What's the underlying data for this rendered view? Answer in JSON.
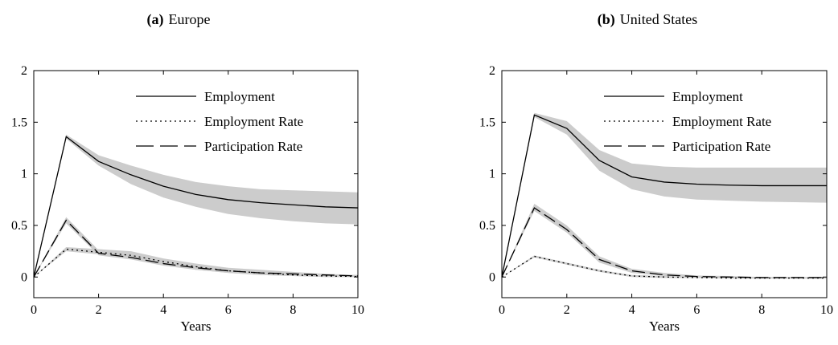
{
  "chart_data": [
    {
      "type": "line",
      "title_prefix": "(a)",
      "title": "Europe",
      "xlabel": "Years",
      "ylabel": "",
      "xlim": [
        0,
        10
      ],
      "ylim": [
        -0.2,
        2
      ],
      "xticks": [
        "0",
        "2",
        "4",
        "6",
        "8",
        "10"
      ],
      "yticks": [
        "0",
        "0.5",
        "1",
        "1.5",
        "2"
      ],
      "grid": false,
      "legend_position": "top-right",
      "x": [
        0,
        1,
        2,
        3,
        4,
        5,
        6,
        7,
        8,
        9,
        10
      ],
      "series": [
        {
          "name": "Employment",
          "style": "solid",
          "values": [
            0,
            1.36,
            1.12,
            0.99,
            0.88,
            0.8,
            0.75,
            0.72,
            0.7,
            0.68,
            0.67
          ],
          "band_low": [
            0,
            1.34,
            1.08,
            0.9,
            0.77,
            0.68,
            0.61,
            0.57,
            0.54,
            0.52,
            0.51
          ],
          "band_high": [
            0,
            1.38,
            1.18,
            1.08,
            0.99,
            0.92,
            0.88,
            0.85,
            0.84,
            0.83,
            0.82
          ]
        },
        {
          "name": "Employment Rate",
          "style": "dotted",
          "values": [
            0,
            0.27,
            0.24,
            0.21,
            0.15,
            0.1,
            0.06,
            0.04,
            0.02,
            0.01,
            0.005
          ],
          "band_low": [
            0,
            0.25,
            0.22,
            0.18,
            0.12,
            0.07,
            0.04,
            0.02,
            0.01,
            0.0,
            0.0
          ],
          "band_high": [
            0,
            0.29,
            0.27,
            0.25,
            0.18,
            0.13,
            0.09,
            0.07,
            0.05,
            0.03,
            0.02
          ]
        },
        {
          "name": "Participation Rate",
          "style": "dashed",
          "values": [
            0,
            0.55,
            0.23,
            0.19,
            0.13,
            0.09,
            0.06,
            0.04,
            0.03,
            0.02,
            0.01
          ],
          "band_low": [
            0,
            0.52,
            0.21,
            0.17,
            0.11,
            0.07,
            0.04,
            0.02,
            0.01,
            0.0,
            0.0
          ],
          "band_high": [
            0,
            0.58,
            0.26,
            0.22,
            0.15,
            0.11,
            0.08,
            0.06,
            0.04,
            0.03,
            0.02
          ]
        }
      ]
    },
    {
      "type": "line",
      "title_prefix": "(b)",
      "title": "United States",
      "xlabel": "Years",
      "ylabel": "",
      "xlim": [
        0,
        10
      ],
      "ylim": [
        -0.2,
        2
      ],
      "xticks": [
        "0",
        "2",
        "4",
        "6",
        "8",
        "10"
      ],
      "yticks": [
        "0",
        "0.5",
        "1",
        "1.5",
        "2"
      ],
      "grid": false,
      "legend_position": "top-right",
      "x": [
        0,
        1,
        2,
        3,
        4,
        5,
        6,
        7,
        8,
        9,
        10
      ],
      "series": [
        {
          "name": "Employment",
          "style": "solid",
          "values": [
            0,
            1.57,
            1.44,
            1.13,
            0.97,
            0.92,
            0.9,
            0.89,
            0.885,
            0.885,
            0.885
          ],
          "band_low": [
            0,
            1.55,
            1.38,
            1.03,
            0.85,
            0.78,
            0.75,
            0.74,
            0.73,
            0.725,
            0.72
          ],
          "band_high": [
            0,
            1.59,
            1.51,
            1.23,
            1.1,
            1.07,
            1.06,
            1.06,
            1.06,
            1.06,
            1.06
          ]
        },
        {
          "name": "Employment Rate",
          "style": "dotted",
          "values": [
            0,
            0.2,
            0.13,
            0.06,
            0.01,
            0.0,
            -0.005,
            -0.01,
            -0.01,
            -0.01,
            -0.01
          ],
          "band_low": [
            0,
            0.19,
            0.12,
            0.05,
            0.0,
            -0.01,
            -0.01,
            -0.015,
            -0.015,
            -0.015,
            -0.015
          ],
          "band_high": [
            0,
            0.21,
            0.14,
            0.07,
            0.02,
            0.01,
            0.0,
            0.0,
            -0.005,
            -0.005,
            -0.005
          ]
        },
        {
          "name": "Participation Rate",
          "style": "dashed",
          "values": [
            0,
            0.67,
            0.46,
            0.17,
            0.06,
            0.02,
            0.005,
            0.0,
            -0.005,
            -0.005,
            -0.005
          ],
          "band_low": [
            0,
            0.64,
            0.43,
            0.14,
            0.04,
            0.01,
            0.0,
            -0.01,
            -0.01,
            -0.01,
            -0.01
          ],
          "band_high": [
            0,
            0.71,
            0.5,
            0.2,
            0.08,
            0.04,
            0.015,
            0.01,
            0.0,
            0.0,
            0.0
          ]
        }
      ]
    }
  ],
  "style": {
    "line_color": "#000000",
    "band_color": "#cccccc"
  }
}
